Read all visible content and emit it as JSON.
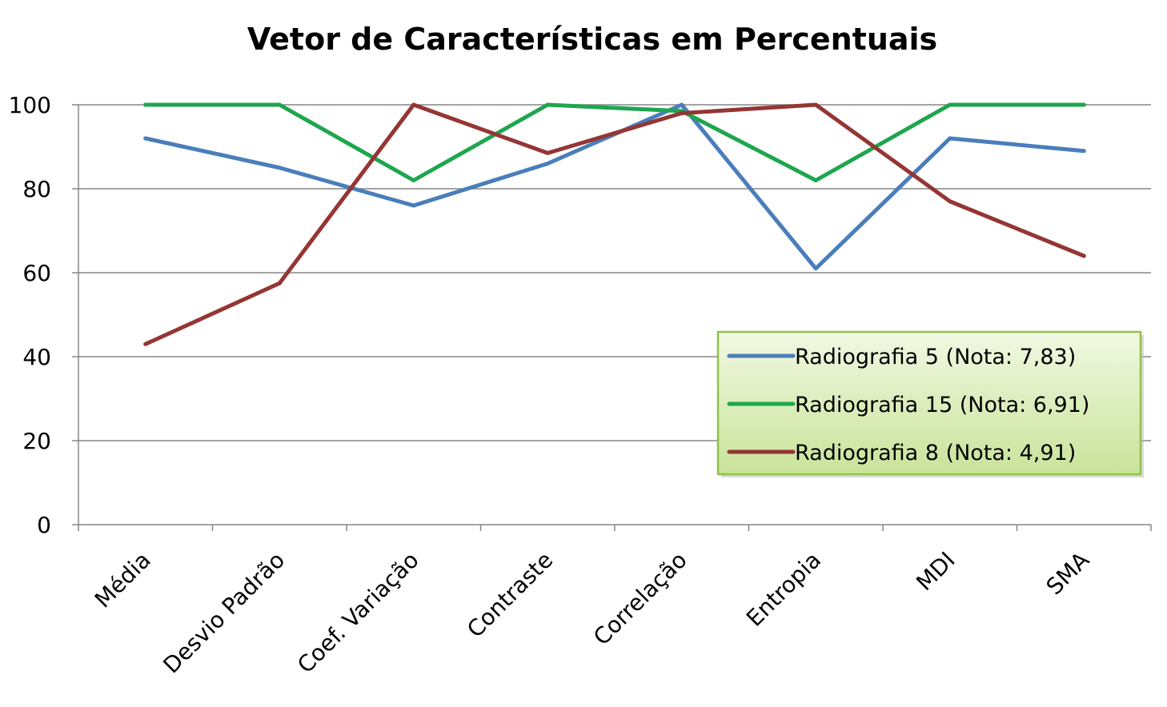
{
  "chart_data": {
    "type": "line",
    "title": "Vetor de Características em Percentuais",
    "xlabel": "",
    "ylabel": "",
    "categories": [
      "Média",
      "Desvio Padrão",
      "Coef. Variação",
      "Contraste",
      "Correlação",
      "Entropia",
      "MDI",
      "SMA"
    ],
    "ylim": [
      0,
      100
    ],
    "yticks": [
      "0",
      "20",
      "40",
      "60",
      "80",
      "100"
    ],
    "grid": true,
    "legend_position": "right",
    "series": [
      {
        "name": "Radiografia 5 (Nota: 7,83)",
        "color": "#4a7ebb",
        "values": [
          92,
          85,
          76,
          86,
          100,
          61,
          92,
          89
        ]
      },
      {
        "name": "Radiografia 15 (Nota: 6,91)",
        "color": "#1ea64e",
        "values": [
          100,
          100,
          82,
          100,
          98.5,
          82,
          100,
          100
        ]
      },
      {
        "name": "Radiografia 8 (Nota: 4,91)",
        "color": "#943634",
        "values": [
          43,
          57.5,
          100,
          88.5,
          98,
          100,
          77,
          64
        ]
      }
    ]
  }
}
